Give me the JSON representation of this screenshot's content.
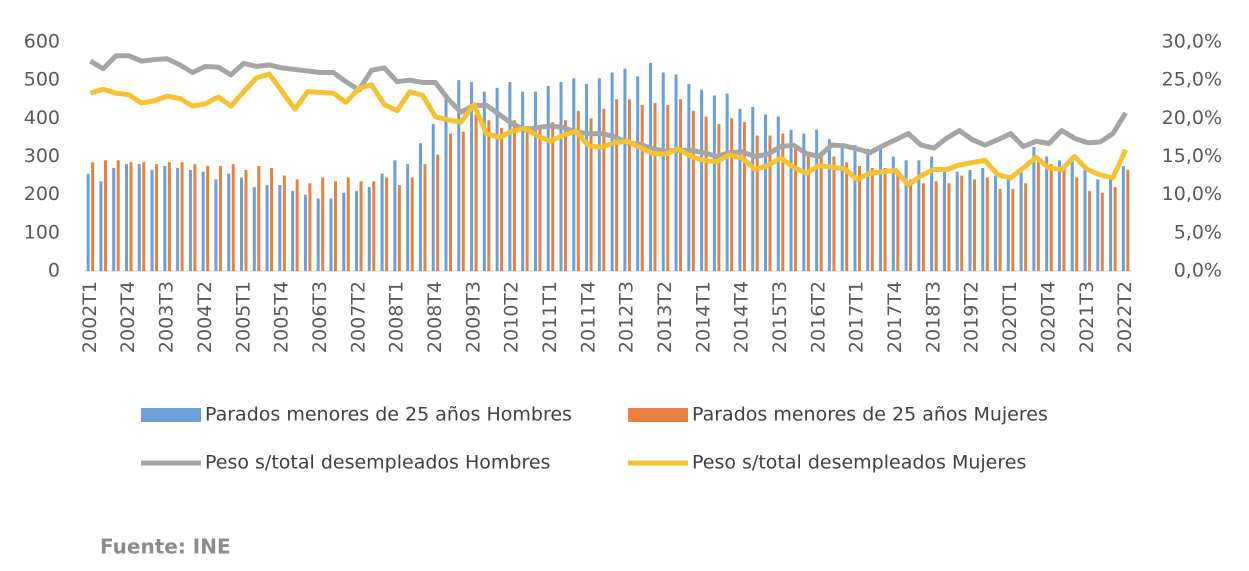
{
  "chart_data": {
    "type": "bar",
    "categories": [
      "2002T1",
      null,
      null,
      "2002T4",
      null,
      null,
      "2003T3",
      null,
      null,
      "2004T2",
      null,
      null,
      "2005T1",
      null,
      null,
      "2005T4",
      null,
      null,
      "2006T3",
      null,
      null,
      "2007T2",
      null,
      null,
      "2008T1",
      null,
      null,
      "2008T4",
      null,
      null,
      "2009T3",
      null,
      null,
      "2010T2",
      null,
      null,
      "2011T1",
      null,
      null,
      "2011T4",
      null,
      null,
      "2012T3",
      null,
      null,
      "2013T2",
      null,
      null,
      "2014T1",
      null,
      null,
      "2014T4",
      null,
      null,
      "2015T3",
      null,
      null,
      "2016T2",
      null,
      null,
      "2017T1",
      null,
      null,
      "2017T4",
      null,
      null,
      "2018T3",
      null,
      null,
      "2019T2",
      null,
      null,
      "2020T1",
      null,
      null,
      "2020T4",
      null,
      null,
      "2021T3",
      null,
      null,
      "2022T2"
    ],
    "series": [
      {
        "name": "Parados menores de 25 años Hombres",
        "type": "bar",
        "color": "#6a9fd8",
        "values": [
          255,
          235,
          270,
          280,
          280,
          265,
          275,
          270,
          265,
          260,
          240,
          255,
          245,
          220,
          225,
          225,
          210,
          200,
          190,
          190,
          205,
          210,
          220,
          255,
          290,
          280,
          335,
          385,
          455,
          500,
          495,
          470,
          480,
          495,
          470,
          470,
          485,
          495,
          505,
          490,
          505,
          520,
          530,
          510,
          545,
          520,
          515,
          490,
          475,
          460,
          465,
          425,
          430,
          410,
          405,
          370,
          360,
          370,
          345,
          335,
          330,
          320,
          325,
          300,
          290,
          290,
          300,
          265,
          260,
          265,
          270,
          250,
          240,
          265,
          325,
          300,
          290,
          300,
          270,
          240,
          245,
          275
        ]
      },
      {
        "name": "Parados menores de 25 años Mujeres",
        "type": "bar",
        "color": "#e8813f",
        "values": [
          285,
          290,
          290,
          285,
          285,
          280,
          285,
          285,
          280,
          275,
          275,
          280,
          265,
          275,
          270,
          250,
          240,
          230,
          245,
          235,
          245,
          235,
          235,
          245,
          225,
          245,
          280,
          305,
          360,
          365,
          410,
          395,
          375,
          395,
          380,
          380,
          390,
          395,
          420,
          400,
          425,
          450,
          450,
          435,
          440,
          435,
          450,
          420,
          405,
          385,
          400,
          390,
          355,
          355,
          360,
          320,
          305,
          300,
          300,
          285,
          275,
          270,
          270,
          260,
          240,
          230,
          235,
          230,
          250,
          240,
          245,
          215,
          215,
          230,
          290,
          280,
          275,
          245,
          210,
          205,
          220,
          265
        ]
      },
      {
        "name": "Peso s/total desempleados  Hombres",
        "type": "line",
        "axis": "y2",
        "color": "#a5a5a5",
        "values": [
          27.5,
          26.5,
          28.2,
          28.2,
          27.5,
          27.7,
          27.8,
          27.0,
          26.0,
          26.8,
          26.7,
          25.7,
          27.2,
          26.8,
          27.0,
          26.6,
          26.4,
          26.2,
          26.0,
          26.0,
          24.8,
          23.7,
          26.3,
          26.6,
          24.8,
          25.0,
          24.7,
          24.7,
          22.5,
          20.8,
          21.7,
          21.7,
          20.5,
          19.3,
          18.5,
          18.8,
          19.0,
          18.8,
          18.2,
          18.0,
          18.0,
          17.6,
          16.8,
          16.6,
          16.0,
          15.7,
          15.8,
          15.8,
          15.5,
          15.0,
          15.5,
          15.6,
          15.0,
          15.3,
          16.3,
          16.5,
          15.4,
          15.0,
          16.5,
          16.4,
          16.0,
          15.5,
          16.4,
          17.2,
          18.0,
          16.5,
          16.1,
          17.4,
          18.4,
          17.2,
          16.5,
          17.2,
          18.0,
          16.3,
          17.0,
          16.7,
          18.4,
          17.4,
          16.8,
          16.9,
          18.0,
          20.7
        ]
      },
      {
        "name": "Peso s/total desempleados  Mujeres",
        "type": "line",
        "axis": "y2",
        "color": "#f7c232",
        "values": [
          23.3,
          23.8,
          23.3,
          23.1,
          22.0,
          22.3,
          22.9,
          22.6,
          21.6,
          21.9,
          22.8,
          21.6,
          23.5,
          25.3,
          25.8,
          23.5,
          21.2,
          23.5,
          23.4,
          23.3,
          22.1,
          23.9,
          24.4,
          21.8,
          21.0,
          23.5,
          23.0,
          20.2,
          19.8,
          19.5,
          21.8,
          18.0,
          17.5,
          18.3,
          18.7,
          17.7,
          17.0,
          17.8,
          18.3,
          16.4,
          16.2,
          16.8,
          17.0,
          16.2,
          15.4,
          15.3,
          16.0,
          15.0,
          14.5,
          14.3,
          15.2,
          14.8,
          13.3,
          13.8,
          14.8,
          13.6,
          12.8,
          13.8,
          13.6,
          13.4,
          12.0,
          12.8,
          13.0,
          13.2,
          11.3,
          12.5,
          13.3,
          13.3,
          13.9,
          14.2,
          14.5,
          12.6,
          12.2,
          13.5,
          14.9,
          13.5,
          13.3,
          15.0,
          13.3,
          12.6,
          12.2,
          15.9
        ]
      }
    ],
    "ylim": [
      0,
      600
    ],
    "yticks": [
      0,
      100,
      200,
      300,
      400,
      500,
      600
    ],
    "y2lim": [
      0,
      30
    ],
    "y2ticks": [
      {
        "value": 0,
        "label": "0,0%"
      },
      {
        "value": 5,
        "label": "5,0%"
      },
      {
        "value": 10,
        "label": "10,0%"
      },
      {
        "value": 15,
        "label": "15,0%"
      },
      {
        "value": 20,
        "label": "20,0%"
      },
      {
        "value": 25,
        "label": "25,0%"
      },
      {
        "value": 30,
        "label": "30,0%"
      }
    ],
    "legend": "bottom",
    "source": "Fuente: INE"
  }
}
